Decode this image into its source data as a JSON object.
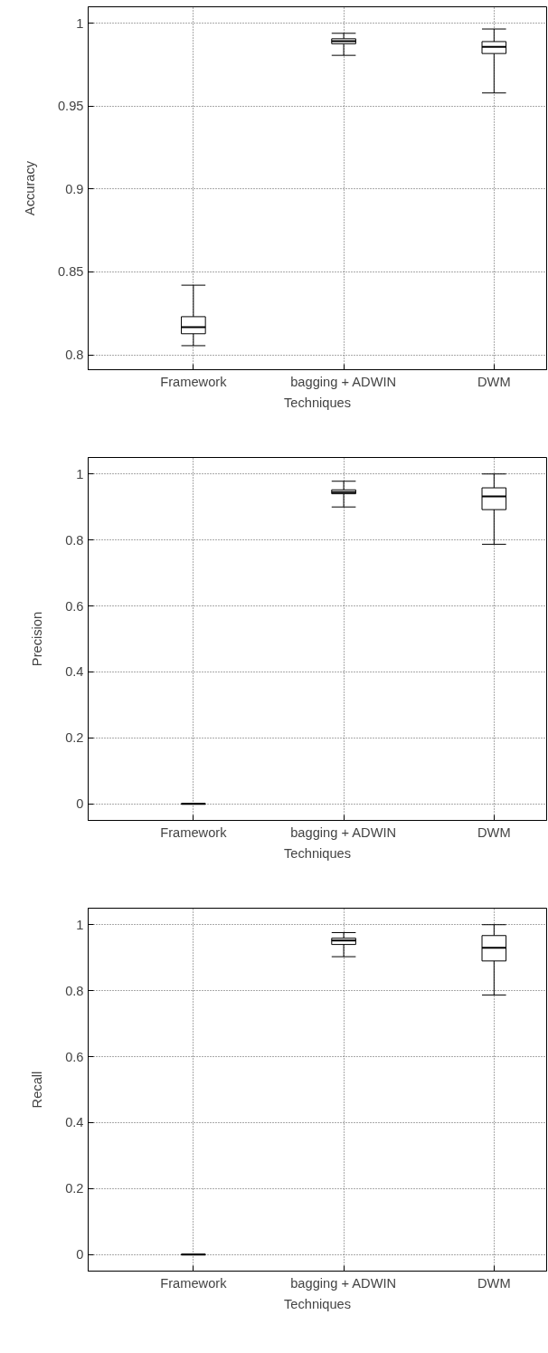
{
  "chart_data": [
    {
      "type": "box",
      "xlabel": "Techniques",
      "ylabel": "Accuracy",
      "categories": [
        "Framework",
        "bagging + ADWIN",
        "DWM"
      ],
      "boxes": [
        {
          "low": 0.8055,
          "q1": 0.8127,
          "median": 0.8167,
          "q3": 0.823,
          "high": 0.842
        },
        {
          "low": 0.9807,
          "q1": 0.9877,
          "median": 0.9893,
          "q3": 0.9907,
          "high": 0.994
        },
        {
          "low": 0.958,
          "q1": 0.9818,
          "median": 0.9859,
          "q3": 0.989,
          "high": 0.9966
        }
      ],
      "ylim": [
        0.791,
        1.01
      ],
      "yticks": [
        0.8,
        0.85,
        0.9,
        0.95,
        1
      ],
      "grid": true
    },
    {
      "type": "box",
      "xlabel": "Techniques",
      "ylabel": "Precision",
      "categories": [
        "Framework",
        "bagging + ADWIN",
        "DWM"
      ],
      "boxes": [
        {
          "low": 0,
          "q1": 0,
          "median": 0,
          "q3": 0,
          "high": 0
        },
        {
          "low": 0.9,
          "q1": 0.94,
          "median": 0.945,
          "q3": 0.952,
          "high": 0.978
        },
        {
          "low": 0.787,
          "q1": 0.892,
          "median": 0.932,
          "q3": 0.958,
          "high": 1.0
        }
      ],
      "ylim": [
        -0.05,
        1.05
      ],
      "yticks": [
        0,
        0.2,
        0.4,
        0.6,
        0.8,
        1
      ],
      "grid": true
    },
    {
      "type": "box",
      "xlabel": "Techniques",
      "ylabel": "Recall",
      "categories": [
        "Framework",
        "bagging + ADWIN",
        "DWM"
      ],
      "boxes": [
        {
          "low": 0,
          "q1": 0,
          "median": 0,
          "q3": 0,
          "high": 0
        },
        {
          "low": 0.903,
          "q1": 0.94,
          "median": 0.952,
          "q3": 0.959,
          "high": 0.976
        },
        {
          "low": 0.787,
          "q1": 0.89,
          "median": 0.93,
          "q3": 0.967,
          "high": 1.0
        }
      ],
      "ylim": [
        -0.05,
        1.05
      ],
      "yticks": [
        0,
        0.2,
        0.4,
        0.6,
        0.8,
        1
      ],
      "grid": true
    }
  ]
}
